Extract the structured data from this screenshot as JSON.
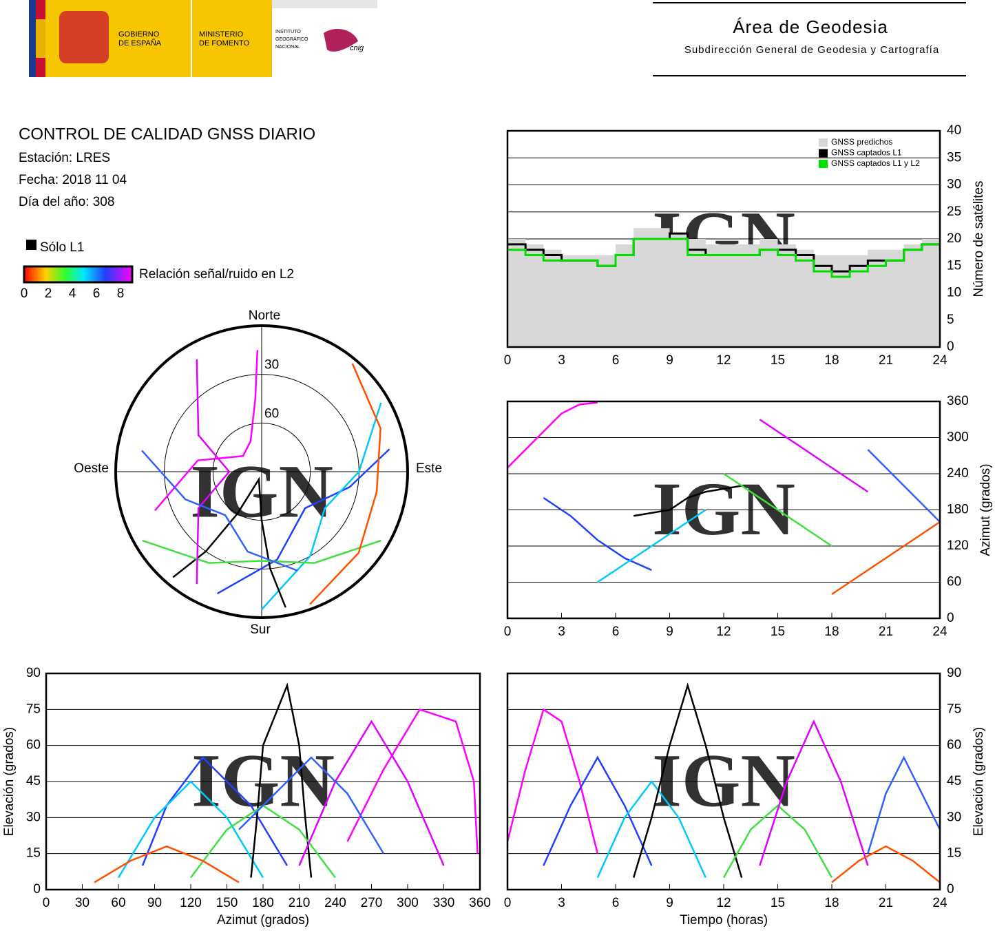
{
  "header": {
    "logo_gob": [
      "GOBIERNO",
      "DE ESPAÑA"
    ],
    "logo_min": [
      "MINISTERIO",
      "DE FOMENTO"
    ],
    "logo_ign": [
      "INSTITUTO",
      "GEOGRÁFICO",
      "NACIONAL"
    ],
    "logo_cnig": "cnig",
    "title": "Área de Geodesia",
    "subtitle": "Subdirección General de Geodesia y Cartografía"
  },
  "report": {
    "title": "CONTROL DE CALIDAD GNSS DIARIO",
    "station": "Estación: LRES",
    "date": "Fecha: 2018 11 04",
    "doy": "Día del año: 308",
    "l1_only": "Sólo L1",
    "snr_label": "Relación señal/ruido en L2",
    "snr_ticks": [
      0,
      2,
      4,
      6,
      8
    ]
  },
  "chart_data": [
    {
      "type": "step",
      "watermark": "IGN",
      "ylabel": "Número de satélites",
      "xlim": [
        0,
        24
      ],
      "xticks": [
        0,
        3,
        6,
        9,
        12,
        15,
        18,
        21,
        24
      ],
      "ylim": [
        0,
        40
      ],
      "yticks": [
        0,
        5,
        10,
        15,
        20,
        25,
        30,
        35,
        40
      ],
      "grid": true,
      "legend": "top-right",
      "x": [
        0,
        1,
        2,
        3,
        4,
        5,
        6,
        7,
        8,
        9,
        10,
        11,
        12,
        13,
        14,
        15,
        16,
        17,
        18,
        19,
        20,
        21,
        22,
        23,
        24
      ],
      "series": [
        {
          "name": "GNSS predichos",
          "color": "#d8d8d8",
          "fill": true,
          "values": [
            20,
            19,
            18,
            17,
            17,
            17,
            19,
            22,
            22,
            21,
            20,
            19,
            19,
            19,
            20,
            19,
            18,
            17,
            17,
            17,
            18,
            18,
            19,
            20,
            19
          ]
        },
        {
          "name": "GNSS captados L1",
          "color": "#000000",
          "values": [
            19,
            18,
            17,
            16,
            16,
            15,
            17,
            20,
            20,
            21,
            18,
            17,
            17,
            17,
            18,
            18,
            17,
            15,
            14,
            15,
            16,
            16,
            18,
            19,
            18
          ]
        },
        {
          "name": "GNSS captados L1 y L2",
          "color": "#00e000",
          "values": [
            18,
            17,
            16,
            16,
            16,
            15,
            17,
            20,
            20,
            20,
            17,
            17,
            17,
            17,
            18,
            17,
            16,
            14,
            13,
            14,
            15,
            16,
            18,
            19,
            18
          ]
        }
      ]
    },
    {
      "type": "line",
      "watermark": "IGN",
      "ylabel": "Azimut (grados)",
      "xlim": [
        0,
        24
      ],
      "xticks": [
        0,
        3,
        6,
        9,
        12,
        15,
        18,
        21,
        24
      ],
      "ylim": [
        0,
        360
      ],
      "yticks": [
        0,
        60,
        120,
        180,
        240,
        300,
        360
      ],
      "grid": true,
      "series": [
        {
          "color": "#ff00ff",
          "x": [
            0,
            1,
            2,
            3,
            4,
            5
          ],
          "values": [
            250,
            280,
            310,
            340,
            355,
            358
          ]
        },
        {
          "color": "#2040ff",
          "x": [
            2,
            3.5,
            5,
            6.5,
            8
          ],
          "values": [
            200,
            170,
            130,
            100,
            80
          ]
        },
        {
          "color": "#00c8ff",
          "x": [
            5,
            6.5,
            8,
            9.5,
            11
          ],
          "values": [
            60,
            90,
            120,
            150,
            180
          ]
        },
        {
          "color": "#000000",
          "x": [
            7,
            8,
            9,
            10,
            11,
            12,
            13
          ],
          "values": [
            170,
            175,
            180,
            200,
            210,
            215,
            220
          ]
        },
        {
          "color": "#40e040",
          "x": [
            12,
            13.5,
            15,
            16.5,
            18
          ],
          "values": [
            240,
            210,
            180,
            150,
            120
          ]
        },
        {
          "color": "#e000ff",
          "x": [
            14,
            15.5,
            17,
            18.5,
            20
          ],
          "values": [
            330,
            300,
            270,
            240,
            210
          ]
        },
        {
          "color": "#ff5000",
          "x": [
            18,
            19.5,
            21,
            22.5,
            24
          ],
          "values": [
            40,
            70,
            100,
            130,
            160
          ]
        },
        {
          "color": "#3060ff",
          "x": [
            20,
            21,
            22,
            23,
            24
          ],
          "values": [
            280,
            250,
            220,
            190,
            160
          ]
        }
      ]
    },
    {
      "type": "line",
      "watermark": "IGN",
      "xlabel": "Azimut (grados)",
      "ylabel": "Elevación (grados)",
      "xlim": [
        0,
        360
      ],
      "xticks": [
        0,
        30,
        60,
        90,
        120,
        150,
        180,
        210,
        240,
        270,
        300,
        330,
        360
      ],
      "ylim": [
        0,
        90
      ],
      "yticks": [
        0,
        15,
        30,
        45,
        60,
        75,
        90
      ],
      "grid": true,
      "series": [
        {
          "color": "#ff00ff",
          "x": [
            250,
            280,
            310,
            340,
            355,
            358
          ],
          "values": [
            20,
            50,
            75,
            70,
            45,
            15
          ]
        },
        {
          "color": "#2040ff",
          "x": [
            200,
            170,
            130,
            100,
            80
          ],
          "values": [
            10,
            35,
            55,
            35,
            10
          ]
        },
        {
          "color": "#00c8ff",
          "x": [
            60,
            90,
            120,
            150,
            180
          ],
          "values": [
            5,
            30,
            45,
            30,
            5
          ]
        },
        {
          "color": "#000000",
          "x": [
            170,
            175,
            180,
            200,
            210,
            215,
            220
          ],
          "values": [
            5,
            30,
            60,
            85,
            60,
            30,
            5
          ]
        },
        {
          "color": "#40e040",
          "x": [
            240,
            210,
            180,
            150,
            120
          ],
          "values": [
            5,
            25,
            35,
            25,
            5
          ]
        },
        {
          "color": "#e000ff",
          "x": [
            330,
            300,
            270,
            240,
            210
          ],
          "values": [
            10,
            45,
            70,
            45,
            10
          ]
        },
        {
          "color": "#ff5000",
          "x": [
            40,
            70,
            100,
            130,
            160
          ],
          "values": [
            3,
            12,
            18,
            12,
            3
          ]
        },
        {
          "color": "#3060ff",
          "x": [
            280,
            250,
            220,
            190,
            160
          ],
          "values": [
            15,
            40,
            55,
            40,
            25
          ]
        }
      ]
    },
    {
      "type": "line",
      "watermark": "IGN",
      "xlabel": "Tiempo (horas)",
      "ylabel": "Elevación (grados)",
      "xlim": [
        0,
        24
      ],
      "xticks": [
        0,
        3,
        6,
        9,
        12,
        15,
        18,
        21,
        24
      ],
      "ylim": [
        0,
        90
      ],
      "yticks": [
        0,
        15,
        30,
        45,
        60,
        75,
        90
      ],
      "grid": true,
      "series": [
        {
          "color": "#ff00ff",
          "x": [
            0,
            1,
            2,
            3,
            4,
            5
          ],
          "values": [
            20,
            50,
            75,
            70,
            45,
            15
          ]
        },
        {
          "color": "#2040ff",
          "x": [
            2,
            3.5,
            5,
            6.5,
            8
          ],
          "values": [
            10,
            35,
            55,
            35,
            10
          ]
        },
        {
          "color": "#00c8ff",
          "x": [
            5,
            6.5,
            8,
            9.5,
            11
          ],
          "values": [
            5,
            30,
            45,
            30,
            5
          ]
        },
        {
          "color": "#000000",
          "x": [
            7,
            8,
            9,
            10,
            11,
            12,
            13
          ],
          "values": [
            5,
            30,
            60,
            85,
            60,
            30,
            5
          ]
        },
        {
          "color": "#40e040",
          "x": [
            12,
            13.5,
            15,
            16.5,
            18
          ],
          "values": [
            5,
            25,
            35,
            25,
            5
          ]
        },
        {
          "color": "#e000ff",
          "x": [
            14,
            15.5,
            17,
            18.5,
            20
          ],
          "values": [
            10,
            45,
            70,
            45,
            10
          ]
        },
        {
          "color": "#ff5000",
          "x": [
            18,
            19.5,
            21,
            22.5,
            24
          ],
          "values": [
            3,
            12,
            18,
            12,
            3
          ]
        },
        {
          "color": "#3060ff",
          "x": [
            20,
            21,
            22,
            23,
            24
          ],
          "values": [
            15,
            40,
            55,
            40,
            25
          ]
        }
      ]
    },
    {
      "type": "polar",
      "watermark": "IGN",
      "north": "Norte",
      "south": "Sur",
      "east": "Este",
      "west": "Oeste",
      "rlim": [
        0,
        90
      ],
      "rticks": [
        30,
        60
      ],
      "series": [
        {
          "color": "#ff00ff",
          "x": [
            250,
            280,
            310,
            340,
            355,
            358
          ],
          "values": [
            20,
            50,
            75,
            70,
            45,
            15
          ]
        },
        {
          "color": "#2040ff",
          "x": [
            200,
            170,
            130,
            100,
            80
          ],
          "values": [
            10,
            35,
            55,
            35,
            10
          ]
        },
        {
          "color": "#00c8ff",
          "x": [
            60,
            90,
            120,
            150,
            180
          ],
          "values": [
            5,
            30,
            45,
            30,
            5
          ]
        },
        {
          "color": "#000000",
          "x": [
            170,
            175,
            180,
            200,
            210,
            215,
            220
          ],
          "values": [
            5,
            30,
            60,
            85,
            60,
            30,
            5
          ]
        },
        {
          "color": "#40e040",
          "x": [
            240,
            210,
            180,
            150,
            120
          ],
          "values": [
            5,
            25,
            35,
            25,
            5
          ]
        },
        {
          "color": "#e000ff",
          "x": [
            330,
            300,
            270,
            240,
            210
          ],
          "values": [
            10,
            45,
            70,
            45,
            10
          ]
        },
        {
          "color": "#ff5000",
          "x": [
            40,
            70,
            100,
            130,
            160
          ],
          "values": [
            3,
            12,
            18,
            12,
            3
          ]
        },
        {
          "color": "#3060ff",
          "x": [
            280,
            250,
            220,
            190,
            160
          ],
          "values": [
            15,
            40,
            55,
            40,
            25
          ]
        }
      ]
    }
  ]
}
